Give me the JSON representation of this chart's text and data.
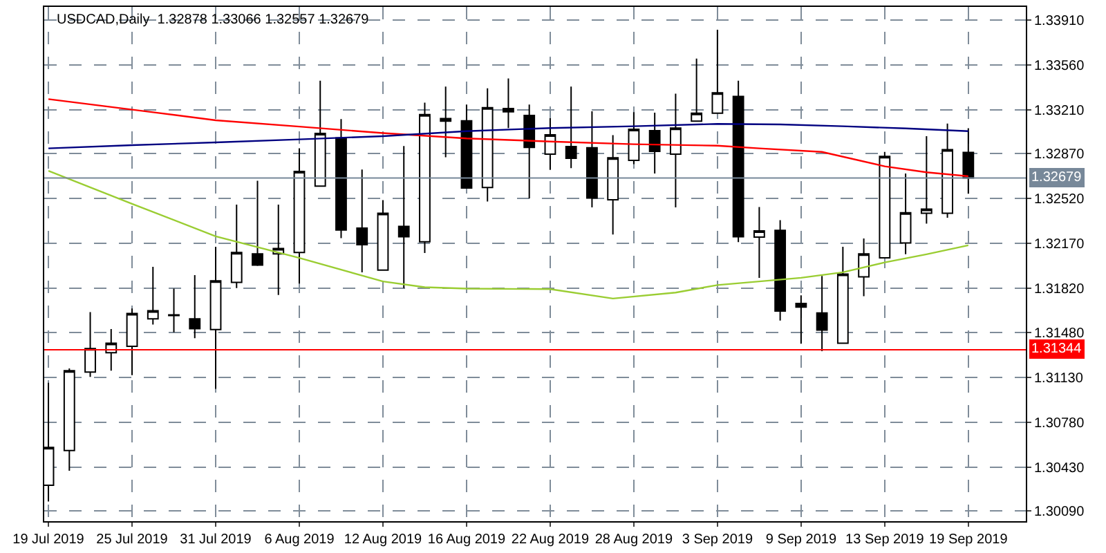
{
  "chart_data": {
    "type": "candlestick",
    "title": "USDCAD,Daily  1.32878 1.33066 1.32557 1.32679",
    "color": "#000000",
    "categories": [
      "19 Jul 2019",
      null,
      null,
      null,
      "25 Jul 2019",
      null,
      null,
      null,
      "31 Jul 2019",
      null,
      null,
      null,
      "6 Aug 2019",
      null,
      null,
      null,
      "12 Aug 2019",
      null,
      null,
      null,
      "16 Aug 2019",
      null,
      null,
      null,
      "22 Aug 2019",
      null,
      null,
      null,
      "28 Aug 2019",
      null,
      null,
      null,
      "3 Sep 2019",
      null,
      null,
      null,
      "9 Sep 2019",
      null,
      null,
      null,
      "13 Sep 2019",
      null,
      null,
      null,
      "19 Sep 2019"
    ],
    "ohlc": [
      [
        1.3029,
        1.31086,
        1.30163,
        1.30584
      ],
      [
        1.3056,
        1.31198,
        1.30402,
        1.31181
      ],
      [
        1.3117,
        1.31637,
        1.31132,
        1.31353
      ],
      [
        1.31321,
        1.31504,
        1.31181,
        1.31395
      ],
      [
        1.3137,
        1.31665,
        1.31146,
        1.31626
      ],
      [
        1.31584,
        1.31988,
        1.31539,
        1.31647
      ],
      [
        1.31615,
        1.31819,
        1.31479,
        1.31609
      ],
      [
        1.31584,
        1.31924,
        1.31433,
        1.31507
      ],
      [
        1.315,
        1.32145,
        1.3104,
        1.31879
      ],
      [
        1.31868,
        1.32472,
        1.31823,
        1.321
      ],
      [
        1.32089,
        1.32658,
        1.31995,
        1.32002
      ],
      [
        1.32089,
        1.32472,
        1.3177,
        1.32131
      ],
      [
        1.321,
        1.3291,
        1.31858,
        1.32731
      ],
      [
        1.32616,
        1.33436,
        1.32612,
        1.33026
      ],
      [
        1.32991,
        1.33138,
        1.32212,
        1.32275
      ],
      [
        1.32289,
        1.32745,
        1.31946,
        1.3216
      ],
      [
        1.31963,
        1.32507,
        1.3196,
        1.32405
      ],
      [
        1.32303,
        1.32928,
        1.31823,
        1.32223
      ],
      [
        1.32184,
        1.33265,
        1.32096,
        1.33173
      ],
      [
        1.33142,
        1.33391,
        1.3284,
        1.33121
      ],
      [
        1.33124,
        1.3325,
        1.32598,
        1.32602
      ],
      [
        1.32605,
        1.33377,
        1.32496,
        1.33226
      ],
      [
        1.33219,
        1.33454,
        1.33068,
        1.33194
      ],
      [
        1.33166,
        1.3325,
        1.32521,
        1.32917
      ],
      [
        1.32865,
        1.33145,
        1.32742,
        1.33015
      ],
      [
        1.32924,
        1.33391,
        1.32756,
        1.32833
      ],
      [
        1.32914,
        1.33198,
        1.32451,
        1.32524
      ],
      [
        1.3251,
        1.33012,
        1.3224,
        1.32837
      ],
      [
        1.32816,
        1.33191,
        1.32787,
        1.33058
      ],
      [
        1.33047,
        1.33187,
        1.32714,
        1.32886
      ],
      [
        1.32865,
        1.33335,
        1.32451,
        1.33068
      ],
      [
        1.33121,
        1.33608,
        1.33117,
        1.33184
      ],
      [
        1.33184,
        1.33833,
        1.3318,
        1.33342
      ],
      [
        1.33314,
        1.33436,
        1.32181,
        1.32223
      ],
      [
        1.32219,
        1.32454,
        1.31903,
        1.32268
      ],
      [
        1.32272,
        1.32352,
        1.3157,
        1.31644
      ],
      [
        1.31703,
        1.31767,
        1.31391,
        1.31675
      ],
      [
        1.3163,
        1.31917,
        1.31332,
        1.31496
      ],
      [
        1.31395,
        1.32145,
        1.31391,
        1.31932
      ],
      [
        1.3191,
        1.32209,
        1.3176,
        1.32089
      ],
      [
        1.32058,
        1.32882,
        1.32054,
        1.32847
      ],
      [
        1.32174,
        1.32714,
        1.32086,
        1.32409
      ],
      [
        1.32405,
        1.33005,
        1.32324,
        1.32437
      ],
      [
        1.32405,
        1.33103,
        1.3237,
        1.329
      ],
      [
        1.32878,
        1.33066,
        1.32557,
        1.32679
      ]
    ],
    "series": [
      {
        "type": "line",
        "color": "#ff0000",
        "values": [
          1.33293,
          null,
          null,
          null,
          null,
          1.33191,
          null,
          null,
          1.33128,
          null,
          null,
          null,
          1.33079,
          null,
          null,
          null,
          1.33029,
          null,
          null,
          null,
          1.32987,
          null,
          null,
          null,
          1.32963,
          null,
          null,
          null,
          1.32942,
          null,
          null,
          null,
          1.32931,
          null,
          1.3291,
          null,
          null,
          1.32882,
          null,
          null,
          1.3277,
          null,
          1.32724,
          null,
          1.32693
        ]
      },
      {
        "type": "line",
        "color": "#000080",
        "values": [
          1.3291,
          null,
          null,
          null,
          1.32935,
          null,
          null,
          null,
          1.32956,
          null,
          null,
          null,
          1.3298,
          null,
          null,
          null,
          1.33005,
          null,
          null,
          null,
          1.33044,
          null,
          null,
          null,
          1.33068,
          null,
          null,
          null,
          1.33082,
          null,
          null,
          null,
          1.331,
          null,
          null,
          1.33096,
          null,
          null,
          1.33082,
          null,
          null,
          1.33065,
          null,
          null,
          1.33044
        ]
      },
      {
        "type": "line",
        "color": "#9acd32",
        "values": [
          1.32735,
          null,
          null,
          null,
          1.32479,
          null,
          null,
          null,
          1.32226,
          null,
          null,
          null,
          1.32058,
          null,
          null,
          null,
          1.31875,
          null,
          1.3183,
          null,
          1.31819,
          null,
          null,
          null,
          1.31815,
          null,
          null,
          1.31742,
          null,
          null,
          1.31788,
          null,
          1.31847,
          null,
          1.31875,
          null,
          1.31903,
          null,
          1.31946,
          null,
          1.32023,
          null,
          1.32086,
          null,
          1.32156
        ]
      }
    ],
    "ref_lines": [
      {
        "axis": "y",
        "value": 1.31344,
        "label": "1.31344",
        "color": "#ff0000"
      },
      {
        "axis": "y",
        "value": 1.32679,
        "label": "1.32679",
        "color": "#778899"
      }
    ],
    "ylim": [
      1.3001,
      1.3401
    ],
    "yticks": [
      {
        "value": 1.3009,
        "label": "1.30090"
      },
      {
        "value": 1.3043,
        "label": "1.30430"
      },
      {
        "value": 1.3078,
        "label": "1.30780"
      },
      {
        "value": 1.3113,
        "label": "1.31130"
      },
      {
        "value": 1.3148,
        "label": "1.31480"
      },
      {
        "value": 1.3182,
        "label": "1.31820"
      },
      {
        "value": 1.3217,
        "label": "1.32170"
      },
      {
        "value": 1.3252,
        "label": "1.32520"
      },
      {
        "value": 1.3287,
        "label": "1.32870"
      },
      {
        "value": 1.3321,
        "label": "1.33210"
      },
      {
        "value": 1.3356,
        "label": "1.33560"
      },
      {
        "value": 1.3391,
        "label": "1.33910"
      }
    ],
    "grid": true
  }
}
